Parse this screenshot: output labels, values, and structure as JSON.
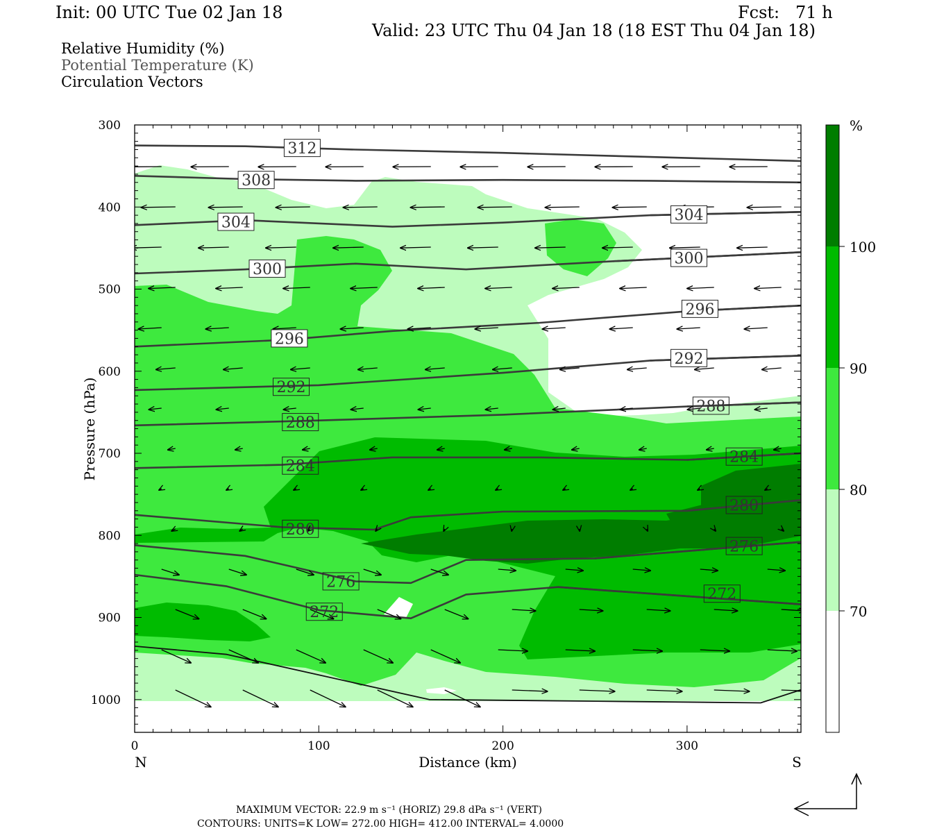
{
  "header": {
    "init": "Init: 00 UTC Tue 02 Jan 18",
    "fcst": "Fcst:   71 h",
    "valid": "Valid: 23 UTC Thu 04 Jan 18 (18 EST Thu 04 Jan 18)"
  },
  "legend": {
    "line1": "Relative Humidity (%)",
    "line2": "Potential Temperature (K)",
    "line3": "Circulation Vectors"
  },
  "colors": {
    "rh_70_80": "#bdfcbd",
    "rh_80_90": "#3ee93e",
    "rh_90_100": "#00bb00",
    "rh_100": "#007d00",
    "theta_line": "#3a3a3a"
  },
  "chart_data": {
    "type": "cross-section",
    "xlabel": "Distance (km)",
    "ylabel": "Pressure (hPa)",
    "x_ticks": [
      "0",
      "100",
      "200",
      "300"
    ],
    "y_ticks": [
      "300",
      "400",
      "500",
      "600",
      "700",
      "800",
      "900",
      "1000"
    ],
    "xlim": [
      0,
      362
    ],
    "ylim": [
      1040,
      300
    ],
    "left_end": "N",
    "right_end": "S",
    "colorbar": {
      "unit": "%",
      "levels": [
        "70",
        "80",
        "90",
        "100"
      ]
    },
    "isentropes": [
      {
        "label": "312",
        "x": [
          0,
          60,
          120,
          200,
          280,
          362
        ],
        "p": [
          325,
          326,
          330,
          334,
          339,
          344
        ],
        "lx": 91,
        "lp": 328
      },
      {
        "label": "308",
        "x": [
          0,
          60,
          120,
          200,
          280,
          362
        ],
        "p": [
          362,
          366,
          368,
          367,
          368,
          370
        ],
        "lx": 66,
        "lp": 367
      },
      {
        "label": "304",
        "x": [
          0,
          60,
          140,
          200,
          280,
          362
        ],
        "p": [
          422,
          416,
          424,
          419,
          410,
          406
        ],
        "lx": 55,
        "lp": 418
      },
      {
        "label": "304",
        "x": [
          280,
          362
        ],
        "p": [
          410,
          406
        ],
        "lx": 301,
        "lp": 409
      },
      {
        "label": "300",
        "x": [
          0,
          60,
          120,
          180,
          260,
          362
        ],
        "p": [
          481,
          476,
          469,
          476,
          466,
          455
        ],
        "lx": 72,
        "lp": 475
      },
      {
        "label": "300",
        "x": [
          260,
          362
        ],
        "p": [
          466,
          455
        ],
        "lx": 301,
        "lp": 462
      },
      {
        "label": "296",
        "x": [
          0,
          80,
          140,
          220,
          300,
          362
        ],
        "p": [
          570,
          562,
          551,
          541,
          527,
          520
        ],
        "lx": 84,
        "lp": 560
      },
      {
        "label": "296",
        "x": [
          300,
          362
        ],
        "p": [
          527,
          520
        ],
        "lx": 307,
        "lp": 524
      },
      {
        "label": "292",
        "x": [
          0,
          100,
          200,
          280,
          362
        ],
        "p": [
          623,
          617,
          602,
          587,
          581
        ],
        "lx": 85,
        "lp": 619
      },
      {
        "label": "292",
        "x": [
          280,
          362
        ],
        "p": [
          587,
          581
        ],
        "lx": 301,
        "lp": 584
      },
      {
        "label": "288",
        "x": [
          0,
          100,
          200,
          300,
          362
        ],
        "p": [
          666,
          660,
          653,
          643,
          638
        ],
        "lx": 90,
        "lp": 662
      },
      {
        "label": "288",
        "x": [
          300,
          362
        ],
        "p": [
          643,
          638
        ],
        "lx": 313,
        "lp": 642
      },
      {
        "label": "284",
        "x": [
          0,
          80,
          140,
          220,
          300,
          362
        ],
        "p": [
          718,
          714,
          705,
          705,
          708,
          700
        ],
        "lx": 90,
        "lp": 715
      },
      {
        "label": "284",
        "x": [
          300,
          362
        ],
        "p": [
          708,
          700
        ],
        "lx": 331,
        "lp": 704
      },
      {
        "label": "280",
        "x": [
          0,
          80,
          130,
          150,
          200,
          300,
          362
        ],
        "p": [
          775,
          790,
          793,
          778,
          771,
          770,
          757
        ],
        "lx": 90,
        "lp": 792
      },
      {
        "label": "280",
        "x": [
          300,
          362
        ],
        "p": [
          770,
          757
        ],
        "lx": 331,
        "lp": 763
      },
      {
        "label": "276",
        "x": [
          0,
          60,
          120,
          150,
          180,
          250,
          362
        ],
        "p": [
          812,
          825,
          856,
          858,
          830,
          828,
          808
        ],
        "lx": 112,
        "lp": 856
      },
      {
        "label": "276",
        "x": [
          250,
          362
        ],
        "p": [
          828,
          808
        ],
        "lx": 331,
        "lp": 813
      },
      {
        "label": "272",
        "x": [
          0,
          50,
          100,
          150,
          180,
          230,
          362
        ],
        "p": [
          848,
          862,
          891,
          901,
          872,
          863,
          884
        ],
        "lx": 103,
        "lp": 893
      },
      {
        "label": "272",
        "x": [
          230,
          362
        ],
        "p": [
          863,
          884
        ],
        "lx": 319,
        "lp": 871
      },
      {
        "label": "",
        "x": [
          0,
          50,
          100,
          160,
          250,
          340,
          362
        ],
        "p": [
          935,
          945,
          970,
          1000,
          1002,
          1004,
          988
        ],
        "lx": -1,
        "lp": 0
      }
    ]
  },
  "footer": {
    "line1": "MAXIMUM VECTOR:  22.9 m s⁻¹ (HORIZ)        29.8 dPa s⁻¹ (VERT)",
    "line2": "CONTOURS:  UNITS=K  LOW=  272.00       HIGH=  412.00       INTERVAL=    4.0000"
  }
}
